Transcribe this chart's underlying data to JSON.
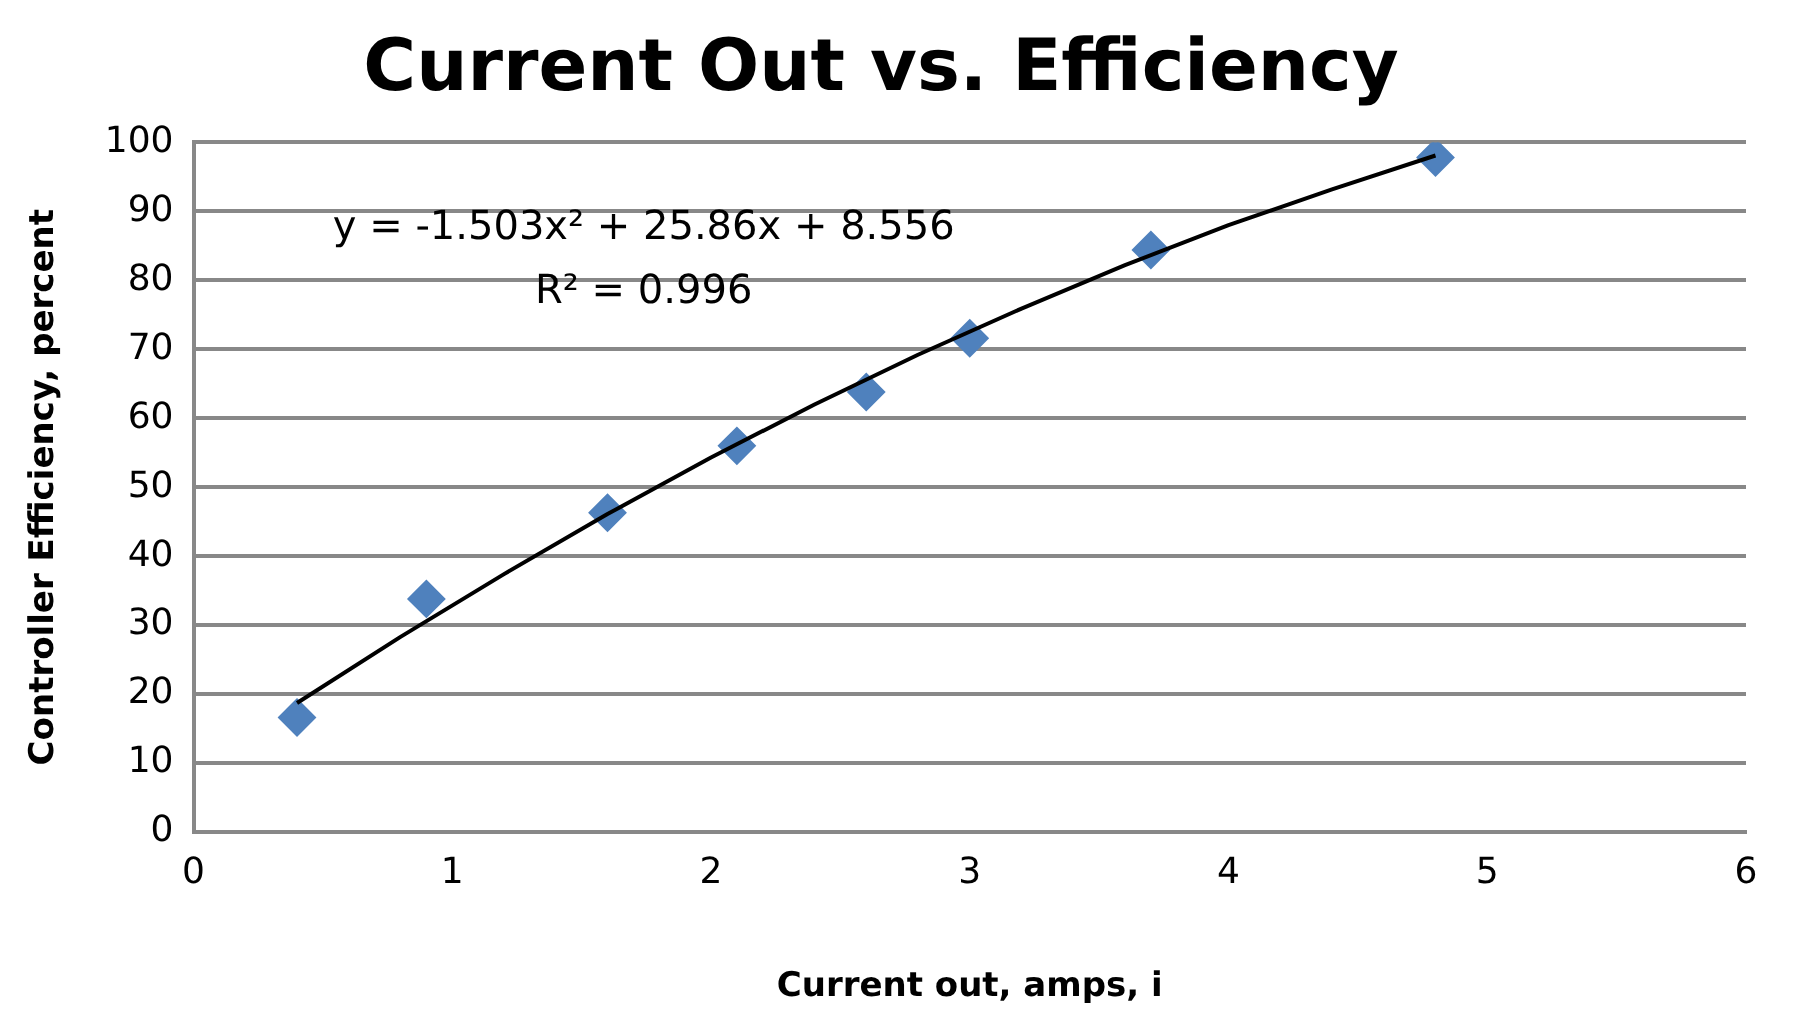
{
  "chart_data": {
    "type": "scatter",
    "title": "Current Out vs. Efficiency",
    "xlabel": "Current out, amps, i",
    "ylabel": "Controller Efficiency, percent",
    "series": [
      {
        "type": "scatter",
        "color": "#4f81bd",
        "marker": "diamond",
        "x": [
          0.4,
          0.9,
          1.6,
          2.1,
          2.6,
          3.0,
          3.7,
          4.8
        ],
        "values": [
          16.6,
          33.8,
          46.3,
          56,
          63.8,
          71.6,
          84.4,
          97.8
        ]
      },
      {
        "type": "line",
        "color": "#000000",
        "marker": "none",
        "line_style": "solid",
        "x": [
          0.4,
          0.8,
          1.2,
          1.6,
          2.0,
          2.4,
          2.8,
          3.2,
          3.6,
          4.0,
          4.4,
          4.8
        ],
        "values": [
          18.7,
          28.3,
          37.4,
          46.1,
          54.3,
          62.0,
          69.2,
          75.9,
          82.2,
          88.0,
          93.2,
          98.1
        ]
      }
    ],
    "annotations": [
      "y = -1.503x² + 25.86x + 8.556",
      "R² = 0.996"
    ],
    "xlim": [
      0,
      6
    ],
    "xticks": [
      0,
      1,
      2,
      3,
      4,
      5,
      6
    ],
    "ylim": [
      0,
      100
    ],
    "yticks": [
      0,
      10,
      20,
      30,
      40,
      50,
      60,
      70,
      80,
      90,
      100
    ],
    "grid": "y",
    "legend": false
  }
}
